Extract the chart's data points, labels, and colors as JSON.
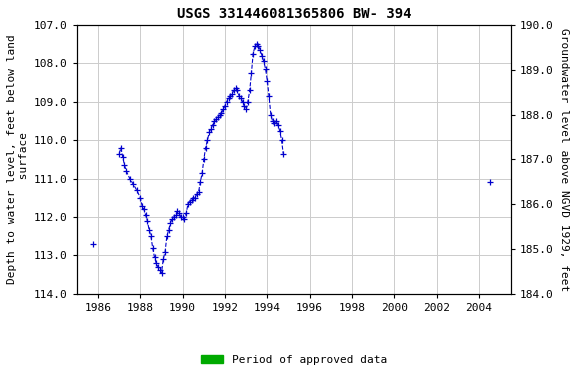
{
  "title": "USGS 331446081365806 BW- 394",
  "ylabel_left": "Depth to water level, feet below land\n surface",
  "ylabel_right": "Groundwater level above NGVD 1929, feet",
  "ylim_left": [
    114.0,
    107.0
  ],
  "ylim_right": [
    184.0,
    190.0
  ],
  "xlim": [
    1985,
    2005.5
  ],
  "xticks": [
    1986,
    1988,
    1990,
    1992,
    1994,
    1996,
    1998,
    2000,
    2002,
    2004
  ],
  "yticks_left": [
    107.0,
    108.0,
    109.0,
    110.0,
    111.0,
    112.0,
    113.0,
    114.0
  ],
  "yticks_right": [
    184.0,
    185.0,
    186.0,
    187.0,
    188.0,
    189.0,
    190.0
  ],
  "grid_color": "#cccccc",
  "line_color": "#0000cc",
  "approved_bar_color": "#00aa00",
  "legend_label": "Period of approved data",
  "iso_x1": 1985.75,
  "iso_y1": 112.7,
  "iso_x2": 2004.5,
  "iso_y2_left": 111.1,
  "approved_period1_start": 1987.0,
  "approved_period1_end": 1994.5,
  "approved_period2_start": 2004.3,
  "approved_period2_end": 2004.72,
  "dates": [
    1987.0,
    1987.08,
    1987.17,
    1987.25,
    1987.33,
    1987.5,
    1987.67,
    1987.83,
    1988.0,
    1988.08,
    1988.17,
    1988.25,
    1988.33,
    1988.42,
    1988.5,
    1988.58,
    1988.67,
    1988.75,
    1988.83,
    1988.92,
    1989.0,
    1989.08,
    1989.17,
    1989.25,
    1989.33,
    1989.42,
    1989.5,
    1989.58,
    1989.67,
    1989.75,
    1989.83,
    1989.92,
    1990.0,
    1990.08,
    1990.17,
    1990.25,
    1990.33,
    1990.42,
    1990.5,
    1990.58,
    1990.67,
    1990.75,
    1990.83,
    1990.92,
    1991.0,
    1991.08,
    1991.17,
    1991.25,
    1991.33,
    1991.42,
    1991.5,
    1991.58,
    1991.67,
    1991.75,
    1991.83,
    1991.92,
    1992.0,
    1992.08,
    1992.17,
    1992.25,
    1992.33,
    1992.42,
    1992.5,
    1992.58,
    1992.67,
    1992.75,
    1992.83,
    1992.92,
    1993.0,
    1993.08,
    1993.17,
    1993.25,
    1993.33,
    1993.42,
    1993.5,
    1993.58,
    1993.67,
    1993.75,
    1993.83,
    1993.92,
    1994.0,
    1994.08,
    1994.17,
    1994.25,
    1994.33,
    1994.42,
    1994.5,
    1994.58,
    1994.67,
    1994.75
  ],
  "depths": [
    110.35,
    110.2,
    110.45,
    110.65,
    110.8,
    111.0,
    111.15,
    111.3,
    111.5,
    111.7,
    111.8,
    111.95,
    112.1,
    112.35,
    112.5,
    112.8,
    113.05,
    113.2,
    113.3,
    113.38,
    113.45,
    113.1,
    112.9,
    112.5,
    112.35,
    112.15,
    112.05,
    112.0,
    111.95,
    111.85,
    111.9,
    112.0,
    112.0,
    112.05,
    111.9,
    111.65,
    111.6,
    111.55,
    111.5,
    111.5,
    111.4,
    111.35,
    111.1,
    110.85,
    110.5,
    110.2,
    110.0,
    109.8,
    109.7,
    109.6,
    109.5,
    109.45,
    109.4,
    109.35,
    109.3,
    109.2,
    109.1,
    109.0,
    108.9,
    108.85,
    108.8,
    108.7,
    108.65,
    108.7,
    108.85,
    108.9,
    109.0,
    109.1,
    109.2,
    109.0,
    108.7,
    108.25,
    107.75,
    107.55,
    107.5,
    107.55,
    107.65,
    107.8,
    107.95,
    108.15,
    108.45,
    108.85,
    109.35,
    109.5,
    109.55,
    109.5,
    109.6,
    109.75,
    110.0,
    110.35
  ]
}
